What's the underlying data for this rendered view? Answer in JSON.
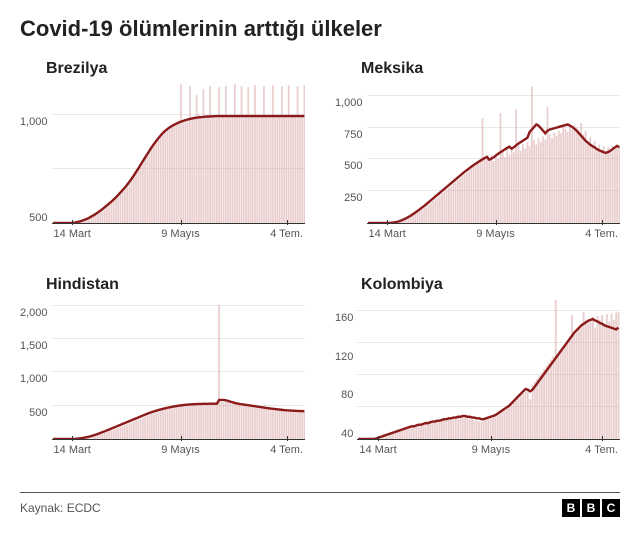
{
  "title": "Covid-19 ölümlerinin arttığı ülkeler",
  "source_label": "Kaynak: ECDC",
  "logo": [
    "B",
    "B",
    "C"
  ],
  "style": {
    "bar_color": "#d9a6a6",
    "bar_opacity": 0.55,
    "line_color": "#8b1a1a",
    "line_width": 2.4,
    "grid_color": "#e8e8e8",
    "axis_color": "#333333",
    "background": "#ffffff",
    "title_fontsize": 22,
    "panel_title_fontsize": 16,
    "tick_fontsize": 11
  },
  "x_labels": [
    "14 Mart",
    "9 Mayıs",
    "4 Tem."
  ],
  "n_days": 113,
  "panels": [
    {
      "title": "Brezilya",
      "ymax": 1300,
      "yticks": [
        500,
        1000
      ],
      "bars": [
        0,
        0,
        0,
        0,
        0,
        0,
        0,
        0,
        0,
        0,
        5,
        8,
        12,
        18,
        25,
        30,
        40,
        55,
        70,
        80,
        95,
        110,
        125,
        140,
        160,
        175,
        195,
        210,
        230,
        250,
        270,
        290,
        320,
        340,
        370,
        400,
        430,
        470,
        500,
        530,
        560,
        600,
        630,
        660,
        700,
        720,
        750,
        780,
        800,
        830,
        850,
        870,
        890,
        900,
        920,
        930,
        950,
        1300,
        960,
        970,
        980,
        1280,
        990,
        1000,
        1200,
        1010,
        1000,
        1250,
        1010,
        990,
        1280,
        1000,
        1010,
        1000,
        1270,
        1010,
        1000,
        1280,
        1000,
        1010,
        990,
        1300,
        1000,
        1010,
        1280,
        1000,
        990,
        1270,
        1010,
        1000,
        1290,
        1000,
        1010,
        990,
        1280,
        1000,
        1010,
        1000,
        1290,
        1000,
        1010,
        1000,
        1280,
        1010,
        1000,
        1290,
        1000,
        1010,
        1000,
        1280,
        1010,
        1000,
        1290
      ],
      "line": [
        0,
        0,
        0,
        0,
        0,
        0,
        0,
        0,
        0,
        2,
        5,
        10,
        15,
        22,
        30,
        38,
        48,
        60,
        72,
        85,
        100,
        115,
        130,
        148,
        165,
        183,
        200,
        220,
        240,
        262,
        285,
        308,
        332,
        358,
        385,
        415,
        445,
        478,
        510,
        545,
        578,
        612,
        645,
        678,
        710,
        740,
        768,
        795,
        820,
        843,
        863,
        880,
        895,
        908,
        920,
        930,
        940,
        948,
        955,
        962,
        968,
        973,
        978,
        982,
        985,
        988,
        990,
        992,
        994,
        996,
        997,
        998,
        999,
        1000,
        1000,
        1000,
        1000,
        1000,
        1000,
        1000,
        1000,
        1000,
        1000,
        1000,
        1000,
        1000,
        1000,
        1000,
        1000,
        1000,
        1000,
        1000,
        1000,
        1000,
        1000,
        1000,
        1000,
        1000,
        1000,
        1000,
        1000,
        1000,
        1000,
        1000,
        1000,
        1000,
        1000,
        1000,
        1000,
        1000,
        1000,
        1000,
        1000
      ]
    },
    {
      "title": "Meksika",
      "ymax": 1100,
      "yticks": [
        250,
        500,
        750,
        1000
      ],
      "bars": [
        0,
        0,
        0,
        0,
        0,
        0,
        0,
        0,
        0,
        0,
        0,
        2,
        5,
        8,
        12,
        18,
        25,
        32,
        40,
        50,
        60,
        72,
        85,
        95,
        108,
        120,
        132,
        145,
        160,
        175,
        190,
        205,
        220,
        235,
        250,
        265,
        280,
        295,
        310,
        325,
        340,
        355,
        370,
        385,
        400,
        415,
        430,
        445,
        460,
        475,
        490,
        830,
        505,
        520,
        480,
        535,
        490,
        550,
        510,
        870,
        565,
        520,
        580,
        540,
        595,
        560,
        900,
        610,
        570,
        625,
        590,
        640,
        610,
        1080,
        655,
        620,
        670,
        640,
        685,
        660,
        920,
        700,
        670,
        715,
        690,
        730,
        710,
        780,
        745,
        720,
        760,
        740,
        775,
        755,
        730,
        790,
        700,
        730,
        650,
        680,
        620,
        650,
        590,
        620,
        580,
        610,
        570,
        600,
        580,
        610,
        590,
        620,
        600
      ],
      "line": [
        0,
        0,
        0,
        0,
        0,
        0,
        0,
        0,
        0,
        0,
        1,
        3,
        6,
        10,
        15,
        22,
        30,
        38,
        48,
        58,
        70,
        82,
        95,
        108,
        122,
        135,
        150,
        165,
        180,
        195,
        210,
        225,
        240,
        255,
        270,
        285,
        300,
        315,
        330,
        345,
        360,
        375,
        390,
        405,
        418,
        432,
        445,
        458,
        470,
        482,
        493,
        504,
        514,
        524,
        500,
        510,
        520,
        535,
        548,
        560,
        572,
        583,
        594,
        604,
        588,
        600,
        615,
        628,
        640,
        652,
        663,
        674,
        720,
        740,
        760,
        780,
        770,
        750,
        730,
        710,
        730,
        740,
        745,
        750,
        755,
        760,
        765,
        770,
        775,
        780,
        770,
        760,
        745,
        730,
        710,
        690,
        670,
        650,
        635,
        620,
        608,
        598,
        585,
        575,
        568,
        560,
        555,
        562,
        572,
        585,
        598,
        610,
        600
      ],
      "baseline_tick": true
    },
    {
      "title": "Hindistan",
      "ymax": 2100,
      "yticks": [
        500,
        1000,
        1500,
        2000
      ],
      "bars": [
        0,
        0,
        0,
        0,
        0,
        0,
        0,
        0,
        0,
        0,
        2,
        5,
        8,
        12,
        18,
        24,
        30,
        38,
        46,
        55,
        64,
        74,
        84,
        95,
        106,
        118,
        130,
        142,
        155,
        168,
        182,
        196,
        210,
        224,
        238,
        252,
        266,
        280,
        294,
        308,
        322,
        336,
        350,
        364,
        378,
        390,
        402,
        414,
        425,
        436,
        446,
        456,
        465,
        474,
        482,
        490,
        497,
        504,
        510,
        516,
        521,
        526,
        530,
        534,
        537,
        540,
        542,
        544,
        546,
        547,
        548,
        549,
        550,
        550,
        2030,
        560,
        560,
        560,
        560,
        555,
        550,
        545,
        540,
        535,
        530,
        525,
        520,
        515,
        510,
        505,
        500,
        495,
        490,
        485,
        480,
        475,
        470,
        465,
        460,
        455,
        450,
        445,
        440,
        438,
        436,
        434,
        432,
        430,
        428,
        426,
        424,
        422,
        420
      ],
      "line": [
        0,
        0,
        0,
        0,
        0,
        0,
        0,
        0,
        0,
        1,
        3,
        6,
        10,
        15,
        21,
        28,
        36,
        45,
        55,
        66,
        78,
        90,
        103,
        116,
        130,
        144,
        158,
        172,
        186,
        200,
        214,
        228,
        242,
        256,
        270,
        284,
        298,
        312,
        326,
        340,
        354,
        368,
        382,
        394,
        406,
        418,
        428,
        438,
        447,
        456,
        464,
        472,
        479,
        486,
        492,
        498,
        503,
        508,
        512,
        516,
        519,
        522,
        524,
        526,
        528,
        529,
        530,
        531,
        532,
        532,
        533,
        533,
        534,
        534,
        590,
        590,
        590,
        585,
        575,
        565,
        555,
        545,
        538,
        530,
        525,
        520,
        515,
        510,
        505,
        500,
        495,
        490,
        485,
        480,
        475,
        470,
        465,
        460,
        456,
        452,
        448,
        444,
        440,
        437,
        434,
        432,
        430,
        428,
        426,
        424,
        422,
        421,
        420
      ],
      "baseline_tick": true
    },
    {
      "title": "Kolombiya",
      "ymax": 175,
      "yticks": [
        40,
        80,
        120,
        160
      ],
      "bars": [
        0,
        0,
        0,
        0,
        0,
        0,
        0,
        0,
        0,
        1,
        2,
        3,
        4,
        5,
        6,
        7,
        8,
        9,
        10,
        11,
        12,
        13,
        14,
        15,
        16,
        16,
        17,
        18,
        18,
        19,
        20,
        20,
        21,
        22,
        22,
        23,
        24,
        24,
        25,
        26,
        26,
        27,
        28,
        28,
        29,
        30,
        30,
        28,
        26,
        25,
        24,
        23,
        22,
        22,
        23,
        24,
        25,
        26,
        27,
        28,
        30,
        32,
        34,
        36,
        38,
        40,
        42,
        45,
        48,
        51,
        54,
        57,
        60,
        64,
        50,
        68,
        72,
        76,
        80,
        84,
        88,
        92,
        96,
        100,
        104,
        175,
        108,
        112,
        116,
        120,
        124,
        128,
        156,
        132,
        136,
        140,
        144,
        160,
        148,
        150,
        152,
        154,
        140,
        155,
        150,
        156,
        145,
        157,
        148,
        158,
        150,
        159,
        160
      ],
      "line": [
        0,
        0,
        0,
        0,
        0,
        0,
        0,
        0,
        1,
        2,
        3,
        4,
        5,
        6,
        7,
        8,
        9,
        10,
        11,
        12,
        13,
        14,
        15,
        16,
        16,
        17,
        18,
        18,
        19,
        20,
        20,
        21,
        22,
        22,
        23,
        23,
        24,
        25,
        25,
        26,
        26,
        27,
        27,
        28,
        28,
        29,
        29,
        28,
        28,
        27,
        27,
        26,
        26,
        25,
        25,
        26,
        27,
        28,
        29,
        30,
        32,
        34,
        36,
        38,
        40,
        42,
        45,
        48,
        51,
        54,
        57,
        60,
        63,
        62,
        60,
        62,
        66,
        70,
        74,
        78,
        82,
        86,
        90,
        94,
        98,
        102,
        106,
        110,
        114,
        118,
        122,
        126,
        130,
        134,
        137,
        140,
        143,
        145,
        147,
        149,
        150,
        151,
        149,
        148,
        146,
        145,
        143,
        142,
        141,
        140,
        139,
        138,
        140
      ]
    }
  ]
}
